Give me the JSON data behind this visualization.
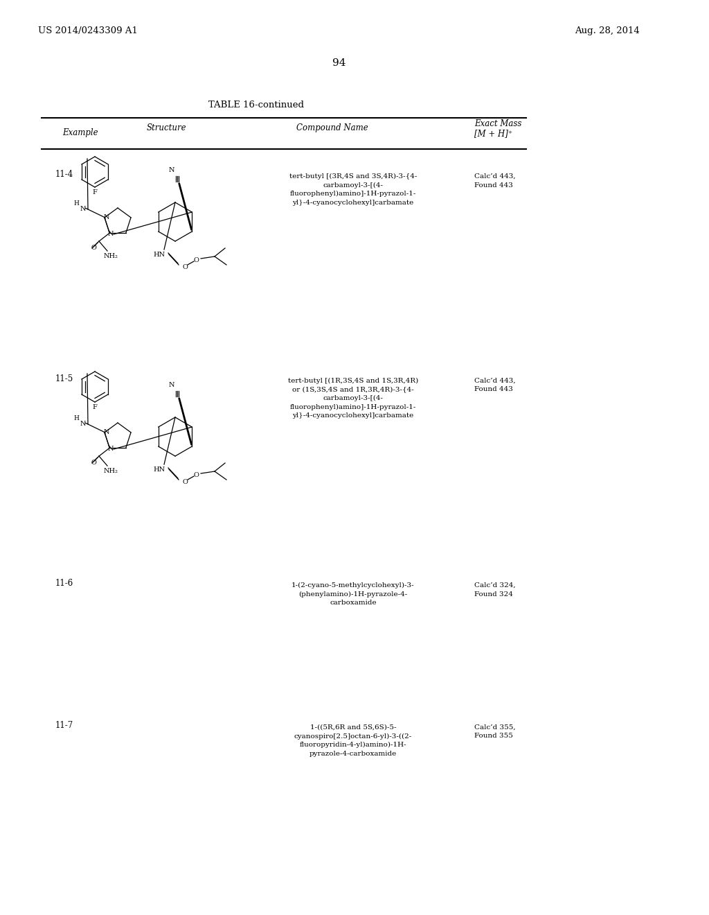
{
  "page_number": "94",
  "patent_number": "US 2014/0243309 A1",
  "patent_date": "Aug. 28, 2014",
  "table_title": "TABLE 16-continued",
  "col_headers": [
    "Example",
    "Structure",
    "Compound Name",
    "Exact Mass\n[M + H]⁺"
  ],
  "background_color": "#ffffff",
  "text_color": "#000000",
  "rows": [
    {
      "example": "11-4",
      "compound_name": "tert-butyl [(3R,4S and 3S,4R)-3-{4-\ncarbamoyl-3-[(4-\nfluorophenyl)amino]-1H-pyrazol-1-\nyl}-4-cyanocyclohexyl]carbamate",
      "exact_mass": "Calc’d 443,\nFound 443"
    },
    {
      "example": "11-5",
      "compound_name": "tert-butyl [(1R,3S,4S and 1S,3R,4R)\nor (1S,3S,4S and 1R,3R,4R)-3-{4-\ncarbamoyl-3-[(4-\nfluorophenyl)amino]-1H-pyrazol-1-\nyl}-4-cyanocyclohexyl]carbamate",
      "exact_mass": "Calc’d 443,\nFound 443"
    },
    {
      "example": "11-6",
      "compound_name": "1-(2-cyano-5-methylcyclohexyl)-3-\n(phenylamino)-1H-pyrazole-4-\ncarboxamide",
      "exact_mass": "Calc’d 324,\nFound 324"
    },
    {
      "example": "11-7",
      "compound_name": "1-((5R,6R and 5S,6S)-5-\ncyanospiro[2.5]octan-6-yl)-3-((2-\nfluoropyridin-4-yl)amino)-1H-\npyrazole-4-carboxamide",
      "exact_mass": "Calc’d 355,\nFound 355"
    }
  ]
}
